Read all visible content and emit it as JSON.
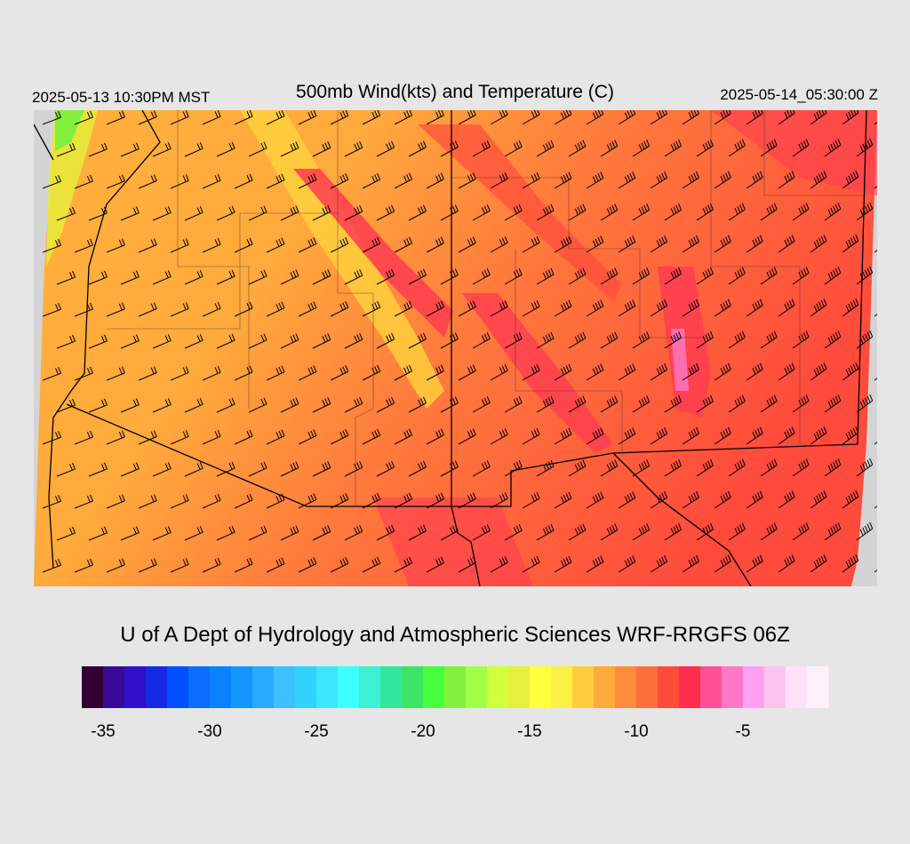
{
  "header": {
    "title": "500mb Wind(kts) and Temperature (C)",
    "local_time": "2025-05-13 10:30PM MST",
    "valid_time": "2025-05-14_05:30:00 Z"
  },
  "credit": "U of A Dept of Hydrology and Atmospheric Sciences WRF-RRGFS 06Z",
  "colorbar": {
    "range": [
      -36,
      -1
    ],
    "ticks": [
      -35,
      -30,
      -25,
      -20,
      -15,
      -10,
      -5
    ],
    "colors": [
      "#330033",
      "#3a0a96",
      "#3010c8",
      "#1428e6",
      "#0050ff",
      "#0a6eff",
      "#0a82ff",
      "#1496ff",
      "#28aaff",
      "#3cc0ff",
      "#32d2ff",
      "#3ce6ff",
      "#3cffff",
      "#3cf0d2",
      "#32e6a0",
      "#3ce664",
      "#46ff3c",
      "#82f03c",
      "#a0ff46",
      "#d2ff3c",
      "#e6f03c",
      "#ffff3c",
      "#fff046",
      "#ffcd3c",
      "#ffaa3c",
      "#ff8c3c",
      "#ff6e3c",
      "#ff4b3c",
      "#ff2d50",
      "#ff5096",
      "#ff78c8",
      "#ffa0f0",
      "#ffc3f0",
      "#ffe1fa",
      "#fff0fa"
    ]
  }
}
